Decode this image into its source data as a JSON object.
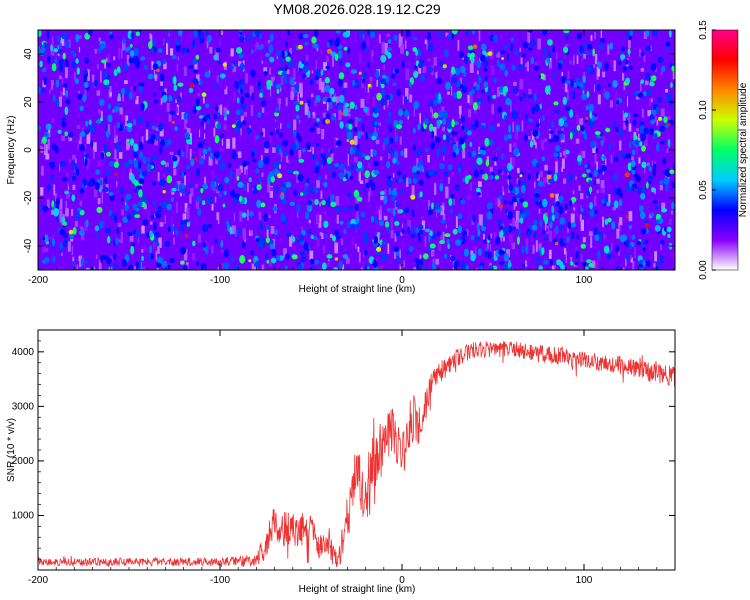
{
  "title": "YM08.2026.028.19.12.C29",
  "chart_data": [
    {
      "type": "heatmap",
      "xlabel": "Height of straight line (km)",
      "ylabel": "Frequency (Hz)",
      "xlim": [
        -200,
        150
      ],
      "ylim": [
        -50,
        50
      ],
      "xticks": [
        -200,
        -100,
        0,
        100
      ],
      "yticks": [
        -40,
        -20,
        0,
        20,
        40
      ],
      "colorbar": {
        "label": "Normalized spectral amplitude",
        "range": [
          0,
          0.15
        ],
        "ticks": [
          0.0,
          0.05,
          0.1,
          0.15
        ],
        "tick_labels": [
          "0.00",
          "0.05",
          "0.10",
          "0.15"
        ],
        "colormap": [
          "#ffffff",
          "#8800ff",
          "#0000ff",
          "#00ccff",
          "#00ff66",
          "#ccff00",
          "#ff8800",
          "#ff0000",
          "#ff0088"
        ]
      },
      "summary": "Speckled noise field; mean amplitude about 0.02-0.05 with sparse peaks near 0.10-0.15"
    },
    {
      "type": "line",
      "xlabel": "Height of straight line (km)",
      "ylabel": "SNR (10 * v/v)",
      "xlim": [
        -200,
        150
      ],
      "ylim": [
        0,
        4400
      ],
      "xticks": [
        -200,
        -100,
        0,
        100
      ],
      "yticks": [
        1000,
        2000,
        3000,
        4000
      ],
      "series": [
        {
          "name": "SNR",
          "color": "#ee3333",
          "x": [
            -200,
            -150,
            -100,
            -80,
            -75,
            -70,
            -60,
            -50,
            -45,
            -40,
            -35,
            -30,
            -25,
            -20,
            -15,
            -10,
            -5,
            0,
            5,
            10,
            15,
            20,
            30,
            40,
            60,
            80,
            100,
            120,
            140,
            150
          ],
          "y_center": [
            150,
            150,
            150,
            180,
            500,
            800,
            700,
            750,
            400,
            400,
            150,
            1000,
            1800,
            1400,
            2000,
            2300,
            2600,
            2000,
            2800,
            2600,
            3300,
            3600,
            3900,
            4050,
            4050,
            3950,
            3850,
            3750,
            3600,
            3550
          ],
          "y_noise": [
            70,
            70,
            70,
            110,
            300,
            350,
            350,
            320,
            250,
            250,
            150,
            500,
            600,
            550,
            600,
            450,
            400,
            450,
            450,
            400,
            250,
            200,
            180,
            150,
            150,
            160,
            160,
            170,
            180,
            180
          ]
        }
      ]
    }
  ]
}
